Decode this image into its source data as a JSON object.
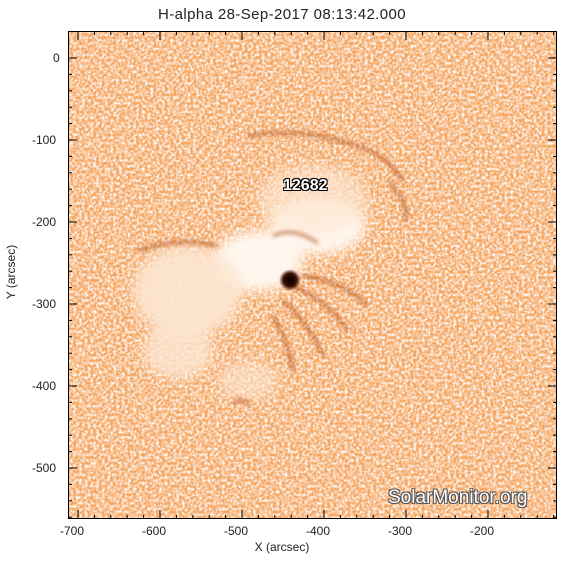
{
  "title": "H-alpha 28-Sep-2017 08:13:42.000",
  "axes": {
    "xlabel": "X (arcsec)",
    "ylabel": "Y (arcsec)",
    "x_ticks": [
      "-700",
      "-600",
      "-500",
      "-400",
      "-300",
      "-200"
    ],
    "y_ticks": [
      "0",
      "-100",
      "-200",
      "-300",
      "-400",
      "-500"
    ]
  },
  "active_region": {
    "number": "12682"
  },
  "watermark": "SolarMonitor.org",
  "colors": {
    "background_orange": "#f5a560",
    "light_region": "#fde7d3",
    "dark_feature": "#8a2e00"
  }
}
